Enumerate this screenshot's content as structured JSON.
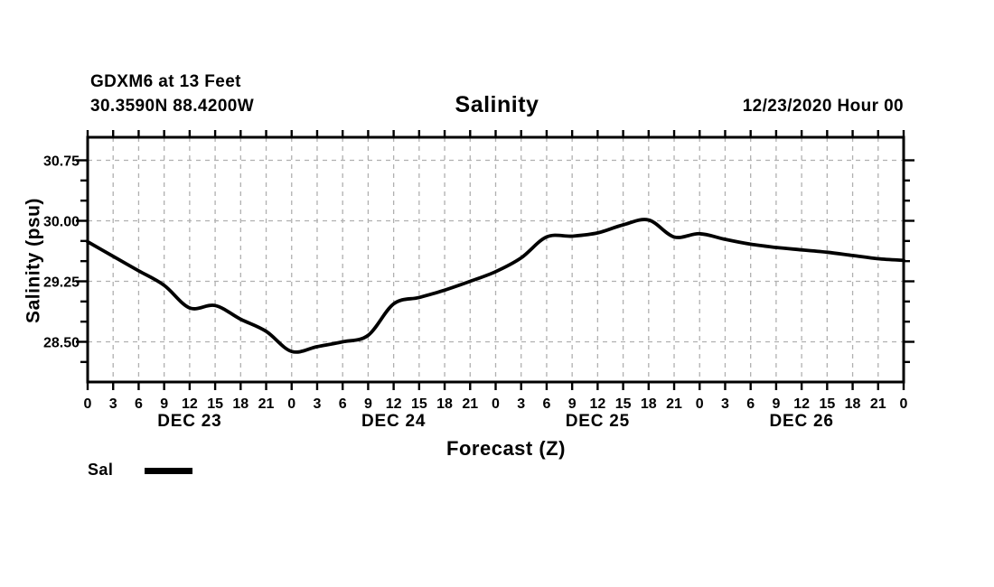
{
  "header": {
    "station_line1": "GDXM6 at 13 Feet",
    "station_line2": "30.3590N 88.4200W",
    "title": "Salinity",
    "run_label": "12/23/2020 Hour 00"
  },
  "legend": {
    "label": "Sal"
  },
  "colors": {
    "background": "#ffffff",
    "axis": "#000000",
    "grid": "#b0b0b0",
    "line": "#000000",
    "text": "#000000"
  },
  "chart_data": {
    "type": "line",
    "title": "Salinity",
    "xlabel": "Forecast (Z)",
    "ylabel": "Salinity (psu)",
    "grid": "dashed",
    "legend_position": "bottom-left",
    "xlim_hours": [
      0,
      96
    ],
    "ylim": [
      28.0,
      31.0
    ],
    "x_hours": [
      0,
      3,
      6,
      9,
      12,
      15,
      18,
      21,
      24,
      27,
      30,
      33,
      36,
      39,
      42,
      45,
      48,
      51,
      54,
      57,
      60,
      63,
      66,
      69,
      72,
      75,
      78,
      81,
      84,
      87,
      90,
      93,
      96
    ],
    "xtick_labels": [
      "0",
      "3",
      "6",
      "9",
      "12",
      "15",
      "18",
      "21",
      "0",
      "3",
      "6",
      "9",
      "12",
      "15",
      "18",
      "21",
      "0",
      "3",
      "6",
      "9",
      "12",
      "15",
      "18",
      "21",
      "0",
      "3",
      "6",
      "9",
      "12",
      "15",
      "18",
      "21",
      "0"
    ],
    "date_labels": [
      {
        "label": "DEC 23",
        "center_hour": 12
      },
      {
        "label": "DEC 24",
        "center_hour": 36
      },
      {
        "label": "DEC 25",
        "center_hour": 60
      },
      {
        "label": "DEC 26",
        "center_hour": 84
      }
    ],
    "ytick_major": [
      {
        "value": 30.75,
        "label": "30.75"
      },
      {
        "value": 30.0,
        "label": "30.00"
      },
      {
        "value": 29.25,
        "label": "29.25"
      },
      {
        "value": 28.5,
        "label": "28.50"
      }
    ],
    "ytick_minor_step": 0.25,
    "series": [
      {
        "name": "Sal",
        "units": "psu",
        "values": [
          29.74,
          29.56,
          29.38,
          29.2,
          28.92,
          28.95,
          28.78,
          28.63,
          28.38,
          28.44,
          28.5,
          28.58,
          28.97,
          29.05,
          29.14,
          29.25,
          29.37,
          29.54,
          29.8,
          29.81,
          29.85,
          29.95,
          30.01,
          29.8,
          29.84,
          29.77,
          29.71,
          29.67,
          29.64,
          29.61,
          29.57,
          29.53,
          29.51
        ]
      }
    ]
  }
}
